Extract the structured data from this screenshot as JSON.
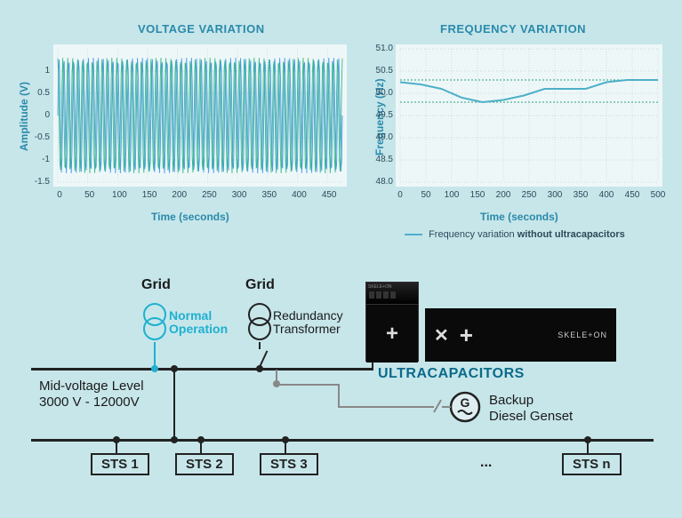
{
  "voltageChart": {
    "title": "VOLTAGE VARIATION",
    "xLabel": "Time (seconds)",
    "yLabel": "Amplitude (V)",
    "xMin": 0,
    "xMax": 475,
    "xStep": 50,
    "yMin": -1.5,
    "yMax": 1.5,
    "yTicks": [
      -1.5,
      -1,
      -0.5,
      0,
      0.5,
      1
    ],
    "background": "#eef7f8",
    "waveColorA": "#4a9aea",
    "waveColorB": "#3ab88a",
    "gridColor": "#9ac0c8",
    "cycles": 58,
    "amplitude": 1.3
  },
  "frequencyChart": {
    "title": "FREQUENCY VARIATION",
    "xLabel": "Time (seconds)",
    "yLabel": "Frequency (Hz)",
    "xMin": 0,
    "xMax": 500,
    "xStep": 50,
    "yMin": 48.0,
    "yMax": 51.0,
    "yStep": 0.5,
    "background": "#eef7f8",
    "lineColor": "#4db0c8",
    "refLines": [
      50.3,
      49.8
    ],
    "refColor": "#2aa080",
    "gridColor": "#9ac0c8",
    "data": [
      {
        "t": 0,
        "f": 50.25
      },
      {
        "t": 40,
        "f": 50.2
      },
      {
        "t": 80,
        "f": 50.1
      },
      {
        "t": 120,
        "f": 49.9
      },
      {
        "t": 160,
        "f": 49.8
      },
      {
        "t": 200,
        "f": 49.85
      },
      {
        "t": 240,
        "f": 49.95
      },
      {
        "t": 280,
        "f": 50.1
      },
      {
        "t": 320,
        "f": 50.1
      },
      {
        "t": 360,
        "f": 50.1
      },
      {
        "t": 400,
        "f": 50.25
      },
      {
        "t": 440,
        "f": 50.3
      },
      {
        "t": 500,
        "f": 50.3
      }
    ],
    "legendPrefix": "Frequency variation ",
    "legendBold": "without ultracapacitors"
  },
  "diagram": {
    "grid1": "Grid",
    "grid2": "Grid",
    "normalOperation": "Normal\nOperation",
    "redundancy": "Redundancy\nTransformer",
    "midVoltage": "Mid-voltage Level\n3000 V - 12000V",
    "ultracapacitors": "ULTRACAPACITORS",
    "backup": "Backup\nDiesel Genset",
    "genG": "G",
    "skeletonBrand": "SKELE+ON",
    "sts": [
      "STS 1",
      "STS 2",
      "STS 3",
      "...",
      "STS n"
    ]
  }
}
